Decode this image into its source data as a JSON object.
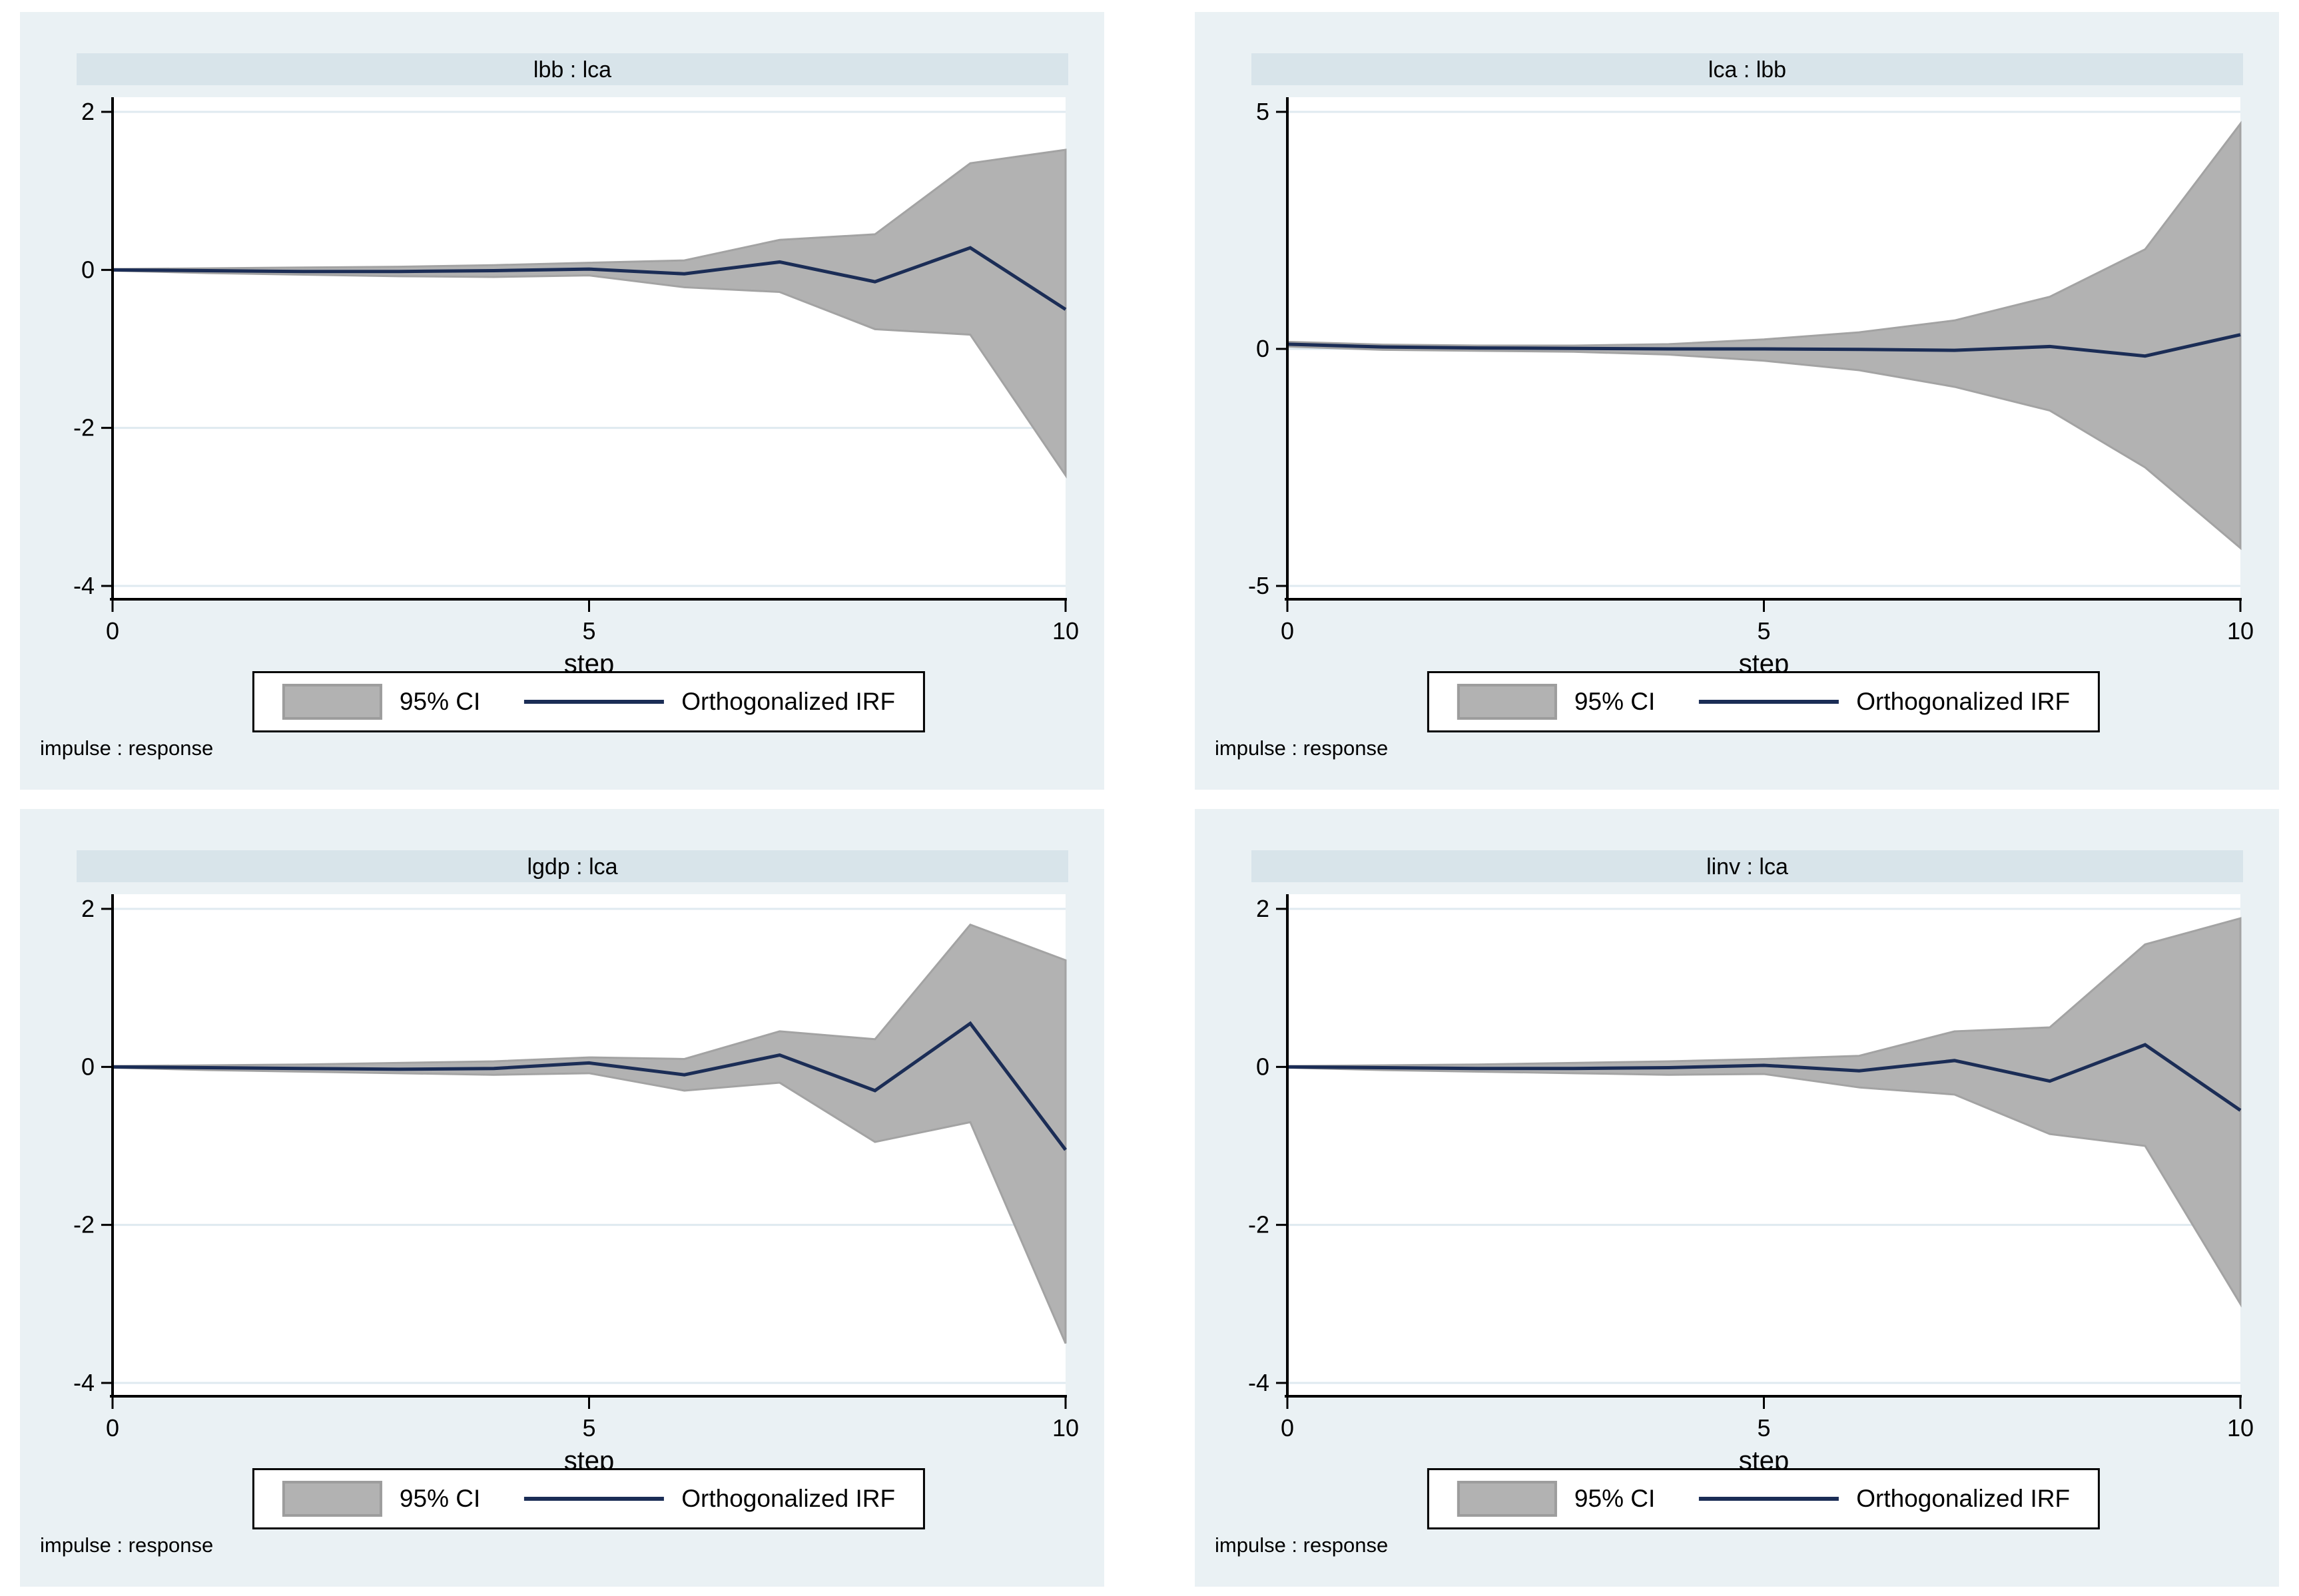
{
  "page": {
    "background": "#ffffff"
  },
  "colors": {
    "card_background": "#eaf1f4",
    "title_bar": "#d8e4ea",
    "plot_background": "#ffffff",
    "gridline": "#dfeaf0",
    "ci_band_fill": "#b2b2b2",
    "ci_band_edge": "#a3a3a3",
    "irf_line": "#1b2d56",
    "axis": "#000000"
  },
  "legend": {
    "ci_label": "95% CI",
    "irf_label": "Orthogonalized IRF"
  },
  "footnote": "impulse : response",
  "xlabel": "step",
  "chart_data": [
    {
      "type": "area",
      "title": "lbb : lca",
      "xlabel": "step",
      "x": [
        0,
        1,
        2,
        3,
        4,
        5,
        6,
        7,
        8,
        9,
        10
      ],
      "xticks": [
        0,
        5,
        10
      ],
      "yticks": [
        2,
        0,
        -2,
        -4
      ],
      "ylim": [
        -4,
        2
      ],
      "legend": [
        "95% CI",
        "Orthogonalized IRF"
      ],
      "grid": true,
      "legend_position": "bottom-center",
      "series": [
        {
          "name": "95% CI upper",
          "values": [
            0.01,
            0.02,
            0.03,
            0.04,
            0.06,
            0.09,
            0.12,
            0.38,
            0.45,
            1.35,
            1.52
          ]
        },
        {
          "name": "95% CI lower",
          "values": [
            -0.01,
            -0.04,
            -0.06,
            -0.08,
            -0.09,
            -0.07,
            -0.22,
            -0.28,
            -0.75,
            -0.82,
            -2.6
          ]
        },
        {
          "name": "Orthogonalized IRF",
          "values": [
            0.0,
            -0.01,
            -0.02,
            -0.02,
            -0.01,
            0.01,
            -0.05,
            0.1,
            -0.15,
            0.28,
            -0.5
          ]
        }
      ]
    },
    {
      "type": "area",
      "title": "lca : lbb",
      "xlabel": "step",
      "x": [
        0,
        1,
        2,
        3,
        4,
        5,
        6,
        7,
        8,
        9,
        10
      ],
      "xticks": [
        0,
        5,
        10
      ],
      "yticks": [
        5,
        0,
        -5
      ],
      "ylim": [
        -5,
        5
      ],
      "legend": [
        "95% CI",
        "Orthogonalized IRF"
      ],
      "grid": true,
      "legend_position": "bottom-center",
      "series": [
        {
          "name": "95% CI upper",
          "values": [
            0.15,
            0.09,
            0.07,
            0.07,
            0.1,
            0.2,
            0.35,
            0.6,
            1.1,
            2.1,
            4.75
          ]
        },
        {
          "name": "95% CI lower",
          "values": [
            0.05,
            -0.02,
            -0.04,
            -0.06,
            -0.12,
            -0.25,
            -0.45,
            -0.8,
            -1.3,
            -2.5,
            -4.2
          ]
        },
        {
          "name": "Orthogonalized IRF",
          "values": [
            0.1,
            0.04,
            0.02,
            0.01,
            0.0,
            0.0,
            -0.01,
            -0.03,
            0.05,
            -0.15,
            0.3
          ]
        }
      ]
    },
    {
      "type": "area",
      "title": "lgdp : lca",
      "xlabel": "step",
      "x": [
        0,
        1,
        2,
        3,
        4,
        5,
        6,
        7,
        8,
        9,
        10
      ],
      "xticks": [
        0,
        5,
        10
      ],
      "yticks": [
        2,
        0,
        -2,
        -4
      ],
      "ylim": [
        -4,
        2
      ],
      "legend": [
        "95% CI",
        "Orthogonalized IRF"
      ],
      "grid": true,
      "legend_position": "bottom-center",
      "series": [
        {
          "name": "95% CI upper",
          "values": [
            0.01,
            0.02,
            0.03,
            0.05,
            0.07,
            0.12,
            0.1,
            0.45,
            0.35,
            1.8,
            1.35
          ]
        },
        {
          "name": "95% CI lower",
          "values": [
            -0.01,
            -0.04,
            -0.06,
            -0.08,
            -0.1,
            -0.08,
            -0.3,
            -0.2,
            -0.95,
            -0.7,
            -3.5
          ]
        },
        {
          "name": "Orthogonalized IRF",
          "values": [
            0.0,
            -0.01,
            -0.02,
            -0.03,
            -0.02,
            0.05,
            -0.1,
            0.15,
            -0.3,
            0.55,
            -1.05
          ]
        }
      ]
    },
    {
      "type": "area",
      "title": "linv : lca",
      "xlabel": "step",
      "x": [
        0,
        1,
        2,
        3,
        4,
        5,
        6,
        7,
        8,
        9,
        10
      ],
      "xticks": [
        0,
        5,
        10
      ],
      "yticks": [
        2,
        0,
        -2,
        -4
      ],
      "ylim": [
        -4,
        2
      ],
      "legend": [
        "95% CI",
        "Orthogonalized IRF"
      ],
      "grid": true,
      "legend_position": "bottom-center",
      "series": [
        {
          "name": "95% CI upper",
          "values": [
            0.01,
            0.02,
            0.03,
            0.05,
            0.07,
            0.1,
            0.14,
            0.45,
            0.5,
            1.55,
            1.88
          ]
        },
        {
          "name": "95% CI lower",
          "values": [
            -0.01,
            -0.04,
            -0.06,
            -0.08,
            -0.1,
            -0.09,
            -0.26,
            -0.35,
            -0.85,
            -1.0,
            -3.0
          ]
        },
        {
          "name": "Orthogonalized IRF",
          "values": [
            0.0,
            -0.01,
            -0.02,
            -0.02,
            -0.01,
            0.02,
            -0.05,
            0.08,
            -0.18,
            0.28,
            -0.55
          ]
        }
      ]
    }
  ]
}
